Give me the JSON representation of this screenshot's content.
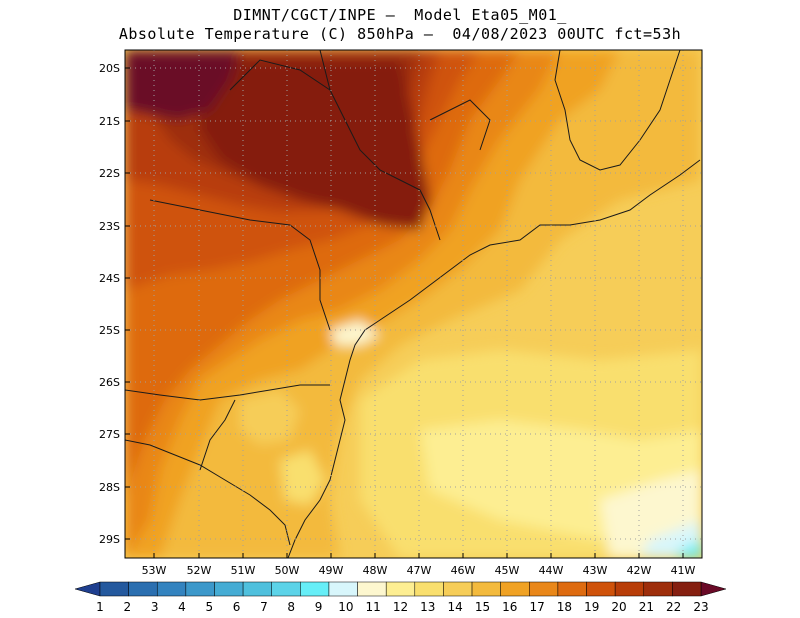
{
  "title_line1": "DIMNT/CGCT/INPE –  Model Eta05_M01_",
  "title_line2": "Absolute Temperature (C) 850hPa –  04/08/2023 00UTC fct=53h",
  "lat_labels": [
    "20S",
    "21S",
    "22S",
    "23S",
    "24S",
    "25S",
    "26S",
    "27S",
    "28S",
    "29S"
  ],
  "lon_labels": [
    "53W",
    "52W",
    "51W",
    "50W",
    "49W",
    "48W",
    "47W",
    "46W",
    "45W",
    "44W",
    "43W",
    "42W",
    "41W"
  ],
  "colorbar": {
    "labels": [
      "1",
      "2",
      "3",
      "4",
      "5",
      "6",
      "7",
      "8",
      "9",
      "10",
      "11",
      "12",
      "13",
      "14",
      "15",
      "16",
      "17",
      "18",
      "19",
      "20",
      "21",
      "22",
      "23"
    ],
    "colors": [
      "#1f3f8f",
      "#24599e",
      "#2b6fb0",
      "#3383bf",
      "#3c98ca",
      "#45acd4",
      "#4fc0dd",
      "#5cd3e8",
      "#66eef7",
      "#d8f6fb",
      "#fdf7cf",
      "#fdee92",
      "#f9df6e",
      "#f6cd58",
      "#f3ba3d",
      "#f0a224",
      "#e98719",
      "#de6b10",
      "#cf520a",
      "#b83d08",
      "#9e2e0b",
      "#851f10",
      "#6a0a27"
    ]
  },
  "icons": {
    "left_arrow": "colorbar-min-arrow",
    "right_arrow": "colorbar-max-arrow"
  }
}
